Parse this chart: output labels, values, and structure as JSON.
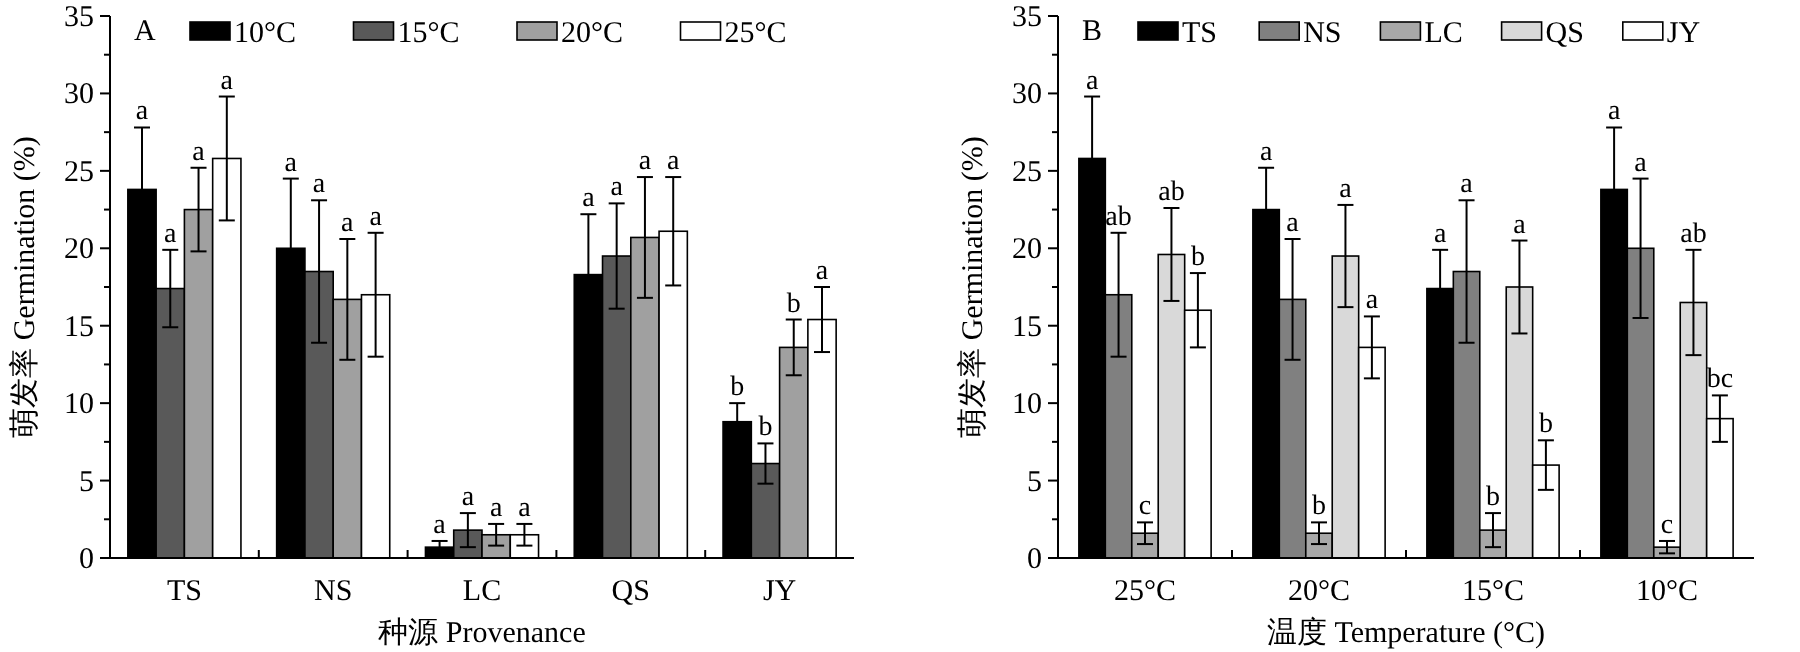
{
  "chart_data": [
    {
      "type": "bar",
      "title": "A",
      "xlabel": "种源 Provenance",
      "ylabel": "萌发率 Germination (%)",
      "categories": [
        "TS",
        "NS",
        "LC",
        "QS",
        "JY"
      ],
      "ylim": [
        0,
        35
      ],
      "yticks": [
        0,
        5,
        10,
        15,
        20,
        25,
        30,
        35
      ],
      "legend": "top",
      "grid": false,
      "series": [
        {
          "name": "10°C",
          "color": "#000000",
          "values": [
            23.8,
            20.0,
            0.7,
            18.3,
            8.8
          ],
          "errors": [
            4.0,
            4.5,
            0.4,
            3.9,
            1.2
          ],
          "value_labels": [
            "a",
            "a",
            "a",
            "a",
            "b"
          ]
        },
        {
          "name": "15°C",
          "color": "#595959",
          "values": [
            17.4,
            18.5,
            1.8,
            19.5,
            6.1
          ],
          "errors": [
            2.5,
            4.6,
            1.1,
            3.4,
            1.3
          ],
          "value_labels": [
            "a",
            "a",
            "a",
            "a",
            "b"
          ]
        },
        {
          "name": "20°C",
          "color": "#a0a0a0",
          "values": [
            22.5,
            16.7,
            1.5,
            20.7,
            13.6
          ],
          "errors": [
            2.7,
            3.9,
            0.7,
            3.9,
            1.8
          ],
          "value_labels": [
            "a",
            "a",
            "a",
            "a",
            "b"
          ]
        },
        {
          "name": "25°C",
          "color": "#ffffff",
          "values": [
            25.8,
            17.0,
            1.5,
            21.1,
            15.4
          ],
          "errors": [
            4.0,
            4.0,
            0.7,
            3.5,
            2.1
          ],
          "value_labels": [
            "a",
            "a",
            "a",
            "a",
            "a"
          ]
        }
      ]
    },
    {
      "type": "bar",
      "title": "B",
      "xlabel": "温度 Temperature (°C)",
      "ylabel": "萌发率 Germination (%)",
      "categories": [
        "25°C",
        "20°C",
        "15°C",
        "10°C"
      ],
      "ylim": [
        0,
        35
      ],
      "yticks": [
        0,
        5,
        10,
        15,
        20,
        25,
        30,
        35
      ],
      "legend": "top",
      "grid": false,
      "series": [
        {
          "name": "TS",
          "color": "#000000",
          "values": [
            25.8,
            22.5,
            17.4,
            23.8
          ],
          "errors": [
            4.0,
            2.7,
            2.5,
            4.0
          ],
          "value_labels": [
            "a",
            "a",
            "a",
            "a"
          ]
        },
        {
          "name": "NS",
          "color": "#808080",
          "values": [
            17.0,
            16.7,
            18.5,
            20.0
          ],
          "errors": [
            4.0,
            3.9,
            4.6,
            4.5
          ],
          "value_labels": [
            "ab",
            "a",
            "a",
            "a"
          ]
        },
        {
          "name": "LC",
          "color": "#a8a8a8",
          "values": [
            1.6,
            1.6,
            1.8,
            0.7
          ],
          "errors": [
            0.7,
            0.7,
            1.1,
            0.4
          ],
          "value_labels": [
            "c",
            "b",
            "b",
            "c"
          ]
        },
        {
          "name": "QS",
          "color": "#d9d9d9",
          "values": [
            19.6,
            19.5,
            17.5,
            16.5
          ],
          "errors": [
            3.0,
            3.3,
            3.0,
            3.4
          ],
          "value_labels": [
            "ab",
            "a",
            "a",
            "ab"
          ]
        },
        {
          "name": "JY",
          "color": "#ffffff",
          "values": [
            16.0,
            13.6,
            6.0,
            9.0
          ],
          "errors": [
            2.4,
            2.0,
            1.6,
            1.5
          ],
          "value_labels": [
            "b",
            "a",
            "b",
            "bc"
          ]
        }
      ]
    }
  ]
}
